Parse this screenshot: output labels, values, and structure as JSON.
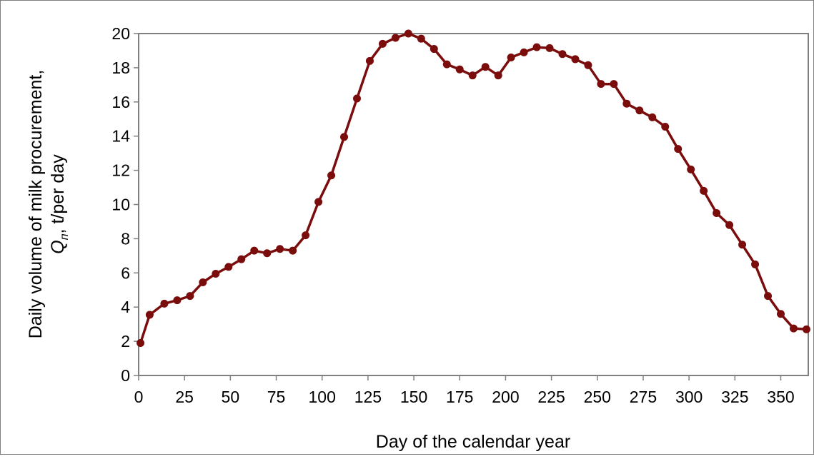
{
  "chart_data": {
    "type": "line",
    "title": "",
    "xlabel": "Day of the calendar year",
    "ylabel_line1": "Daily volume of milk procurement,",
    "ylabel_line2": "Qп,  t/per day",
    "ylabel_q": "Q",
    "ylabel_sub": "п",
    "ylabel_rest": ",  t/per day",
    "xlim": [
      0,
      365
    ],
    "ylim": [
      0,
      20
    ],
    "xticks": [
      0,
      25,
      50,
      75,
      100,
      125,
      150,
      175,
      200,
      225,
      250,
      275,
      300,
      325,
      350
    ],
    "yticks": [
      0,
      2,
      4,
      6,
      8,
      10,
      12,
      14,
      16,
      18,
      20
    ],
    "grid": false,
    "legend": "none",
    "colors": {
      "line": "#7b0c0c",
      "marker": "#7b0c0c",
      "plot_border": "#7f7f7f"
    },
    "series": [
      {
        "x": [
          1,
          6,
          14,
          21,
          28,
          35,
          42,
          49,
          56,
          63,
          70,
          77,
          84,
          91,
          98,
          105,
          112,
          119,
          126,
          133,
          140,
          147,
          154,
          161,
          168,
          175,
          182,
          189,
          196,
          203,
          210,
          217,
          224,
          231,
          238,
          245,
          252,
          259,
          266,
          273,
          280,
          287,
          294,
          301,
          308,
          315,
          322,
          329,
          336,
          343,
          350,
          357,
          364
        ],
        "y": [
          1.9,
          3.55,
          4.2,
          4.4,
          4.65,
          5.45,
          5.95,
          6.35,
          6.8,
          7.3,
          7.15,
          7.4,
          7.3,
          8.2,
          10.15,
          11.7,
          13.95,
          16.2,
          18.4,
          19.4,
          19.75,
          20.0,
          19.7,
          19.1,
          18.2,
          17.9,
          17.55,
          18.05,
          17.55,
          18.6,
          18.9,
          19.2,
          19.15,
          18.8,
          18.5,
          18.15,
          17.05,
          17.05,
          15.9,
          15.5,
          15.1,
          14.55,
          13.25,
          12.05,
          10.8,
          9.5,
          8.8,
          7.65,
          6.5,
          4.65,
          3.6,
          2.75,
          2.7
        ]
      }
    ]
  }
}
